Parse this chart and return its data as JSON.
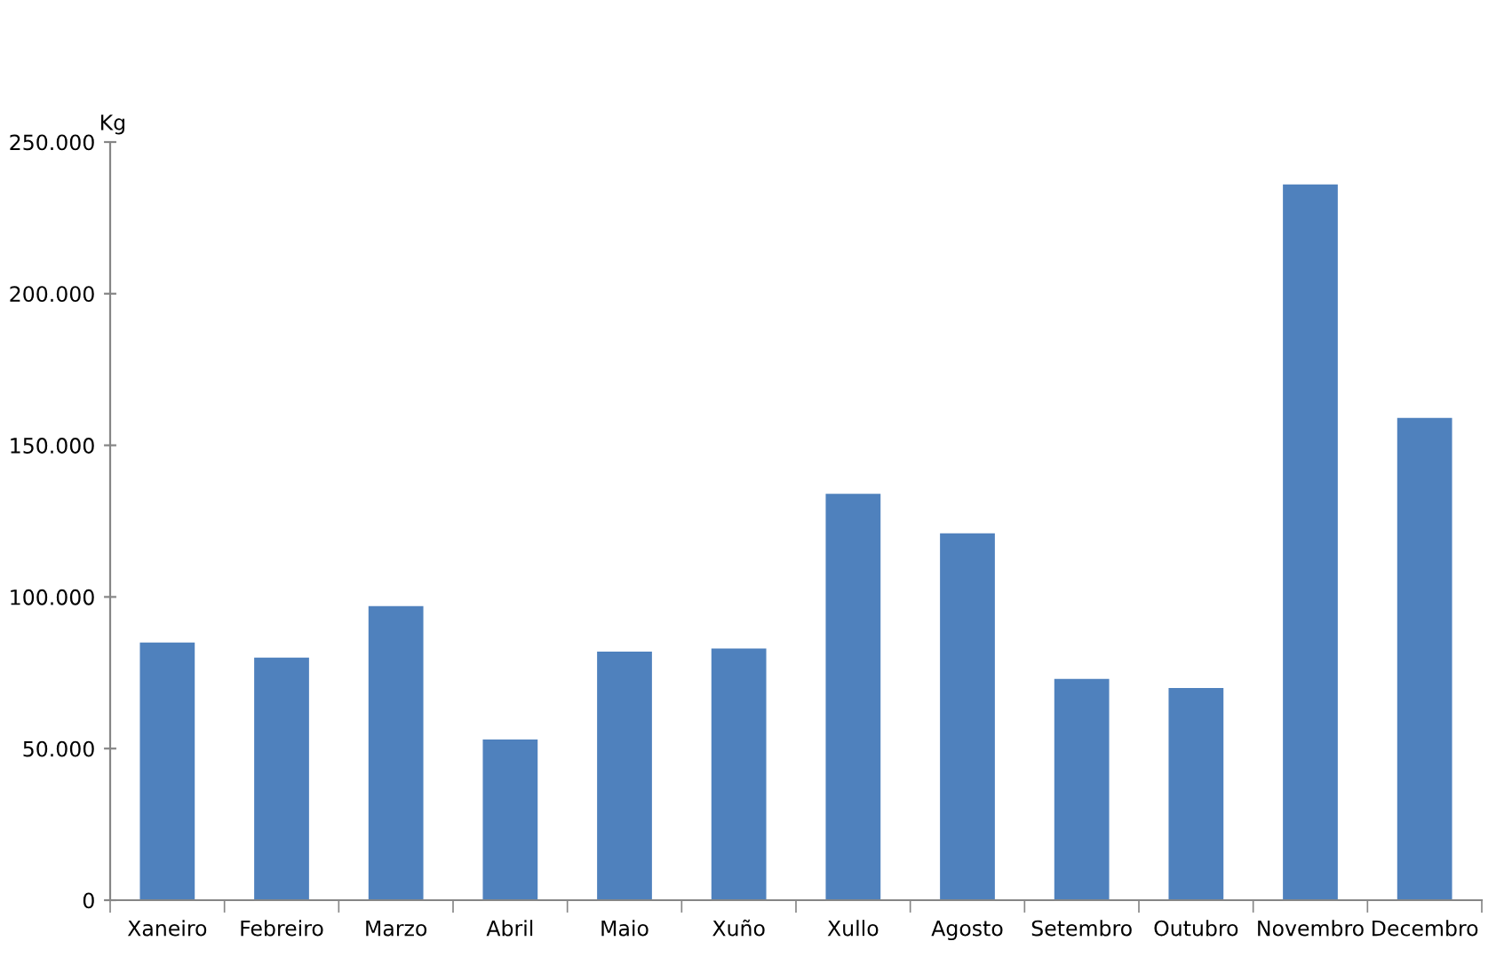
{
  "chart_data": {
    "type": "bar",
    "ylabel": "Kg",
    "categories": [
      "Xaneiro",
      "Febreiro",
      "Marzo",
      "Abril",
      "Maio",
      "Xuño",
      "Xullo",
      "Agosto",
      "Setembro",
      "Outubro",
      "Novembro",
      "Decembro"
    ],
    "values": [
      85000,
      80000,
      97000,
      53000,
      82000,
      83000,
      134000,
      121000,
      73000,
      70000,
      236000,
      159000
    ],
    "color": "#4f81bd",
    "ylim": [
      0,
      250000
    ],
    "yticks": [
      0,
      {
        "value": 50000,
        "label": "50.000"
      },
      {
        "value": 100000,
        "label": "100.000"
      },
      {
        "value": 150000,
        "label": "150.000"
      },
      {
        "value": 200000,
        "label": "200.000"
      },
      {
        "value": 250000,
        "label": "250.000"
      }
    ]
  }
}
